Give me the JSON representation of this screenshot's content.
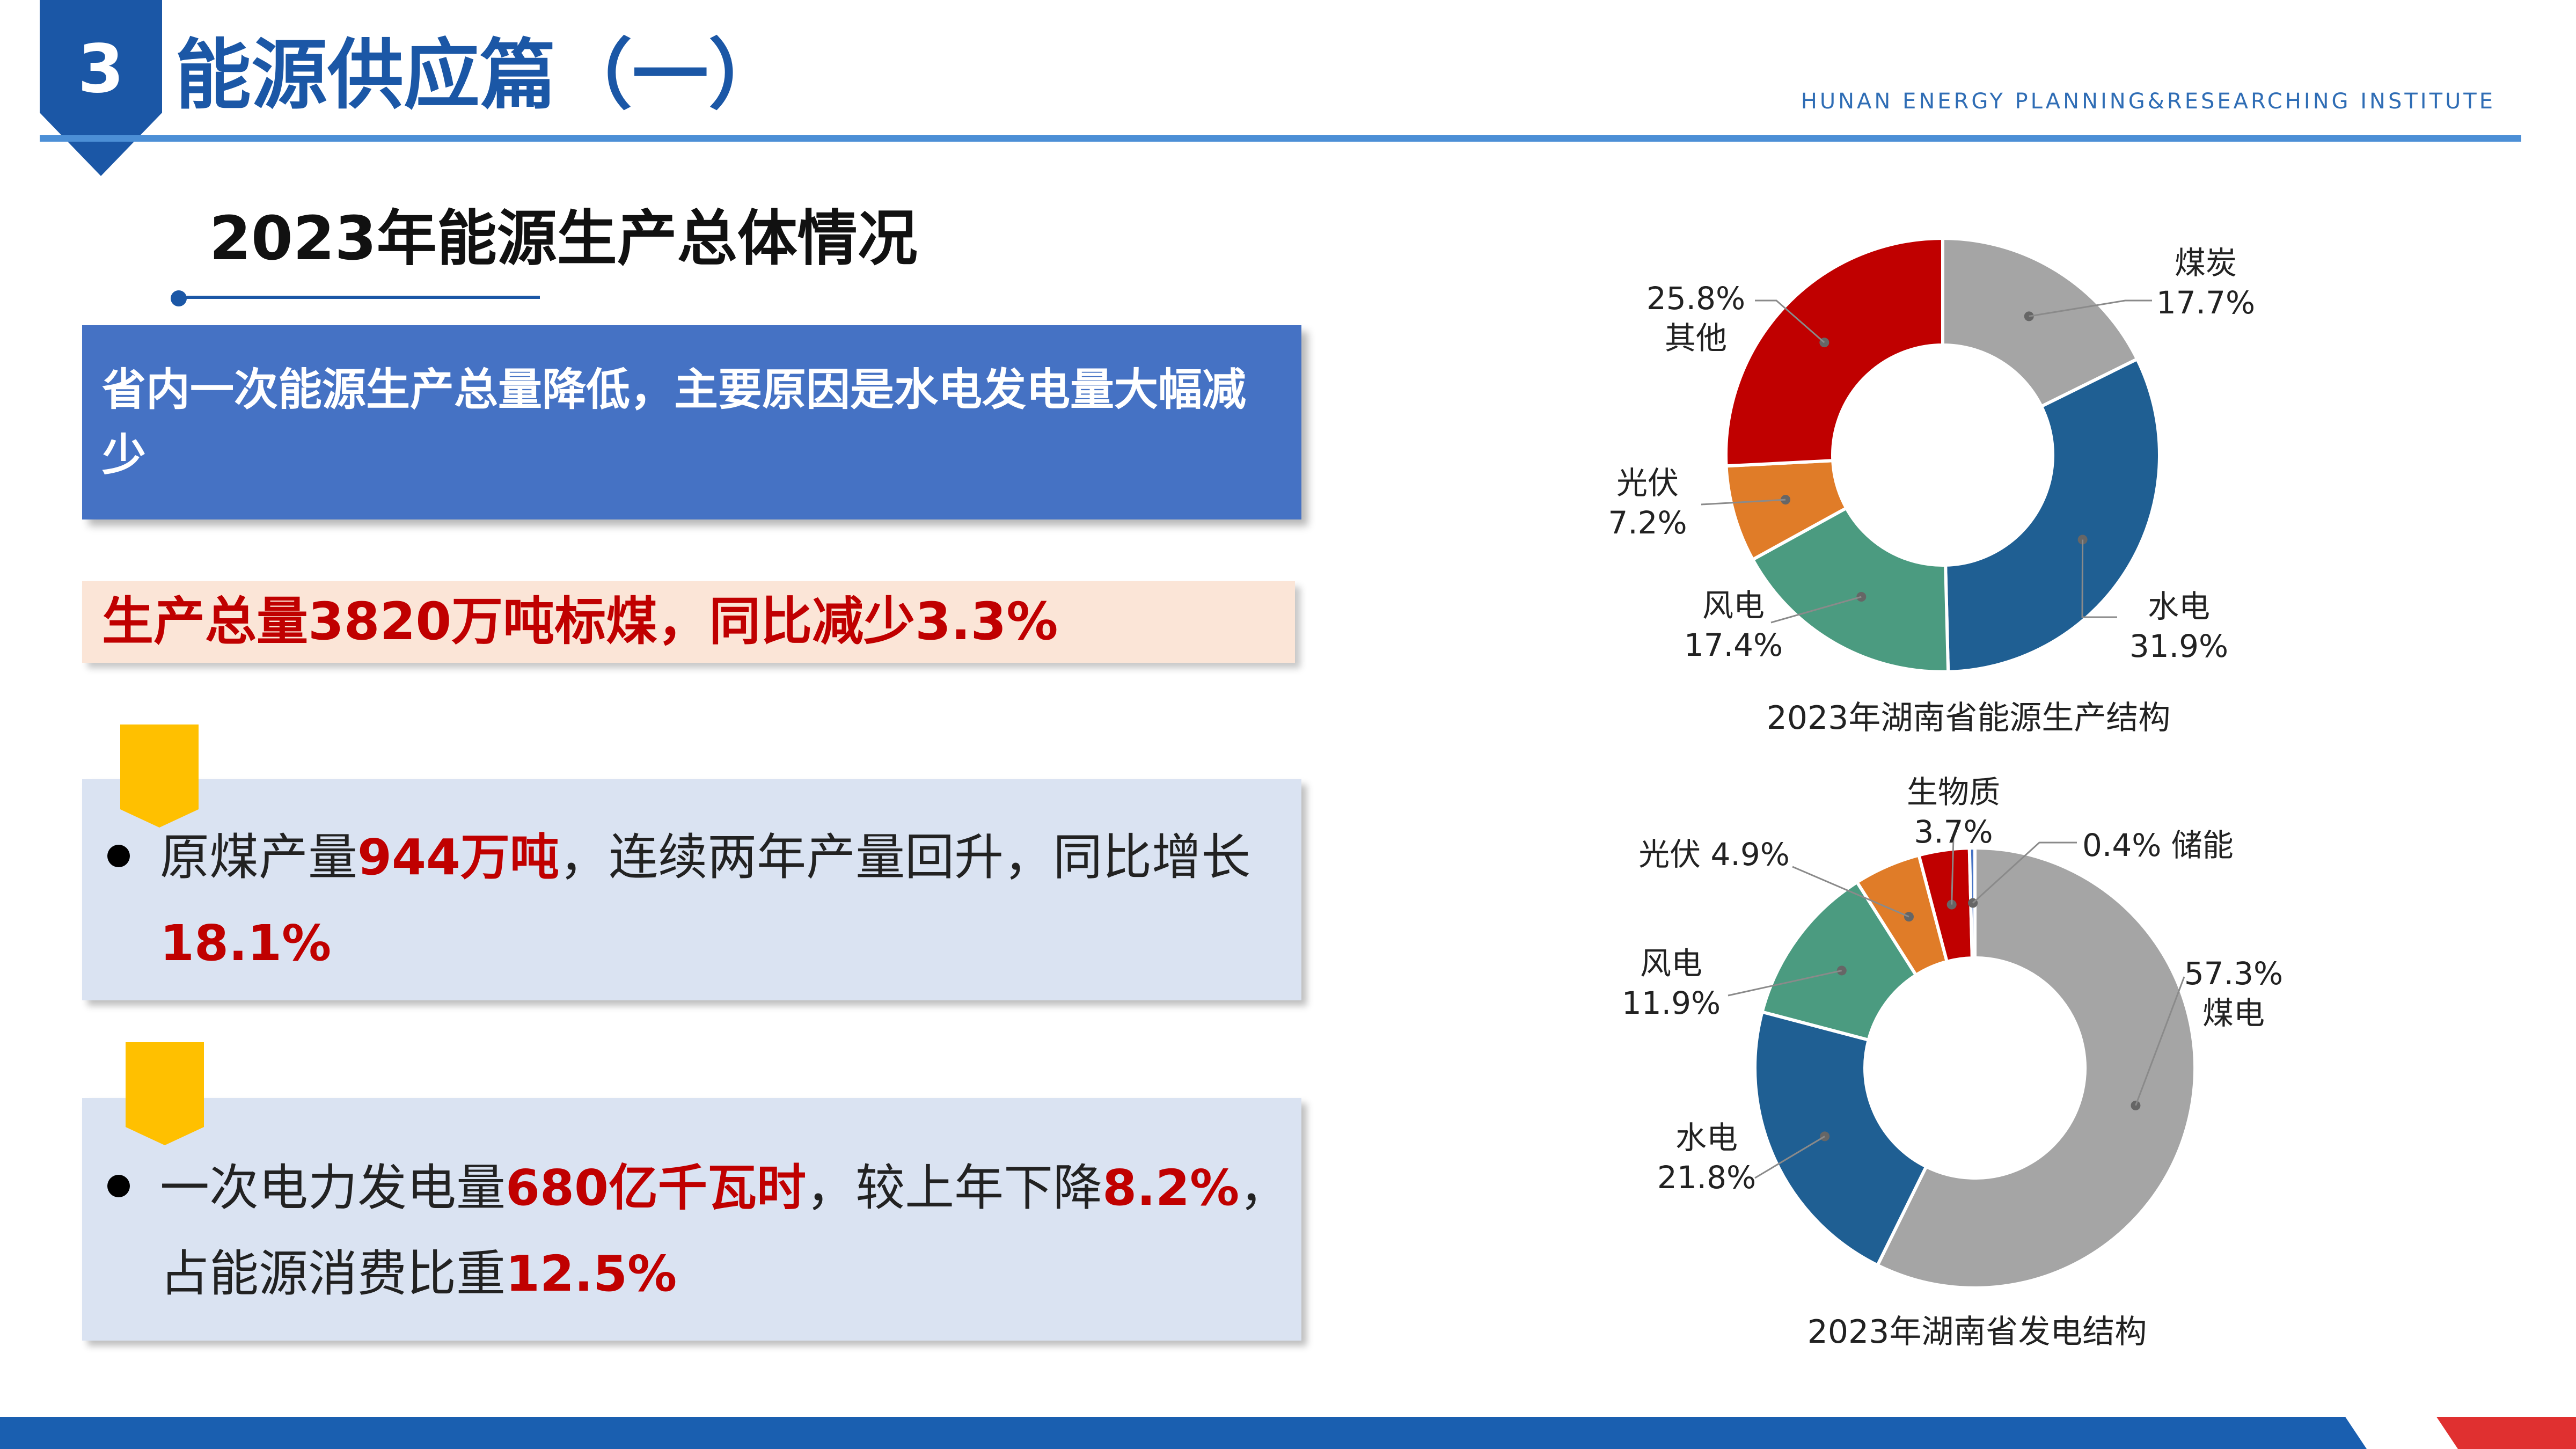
{
  "header": {
    "section_number": "3",
    "title": "能源供应篇（一）",
    "institute": "HUNAN ENERGY PLANNING&RESEARCHING INSTITUTE"
  },
  "subtitle": "2023年能源生产总体情况",
  "summary_box": "省内一次能源生产总量降低，主要原因是水电发电量大幅减少",
  "highlight": "生产总量3820万吨标煤，同比减少3.3%",
  "bullets": [
    {
      "t1": "原煤产量",
      "h1": "944万吨",
      "t2": "，连续两年产量回升，同比增长",
      "h2": "18.1%",
      "t3": ""
    },
    {
      "t1": "一次电力发电量",
      "h1": "680亿千瓦时",
      "t2": "，较上年下降",
      "h2": "8.2%",
      "t3": "，占能源消费比重",
      "h3": "12.5%"
    }
  ],
  "colors": {
    "brand_blue": "#1b57a6",
    "box_blue": "#4572c4",
    "highlight_red": "#c00000",
    "bookmark_yellow": "#ffc000"
  },
  "chart_data": [
    {
      "type": "pie",
      "donut": true,
      "title": "2023年湖南省能源生产结构",
      "slices": [
        {
          "name": "煤炭",
          "value": 17.7,
          "label": "17.7%",
          "color": "#a5a5a5"
        },
        {
          "name": "水电",
          "value": 31.9,
          "label": "31.9%",
          "color": "#1f5f93"
        },
        {
          "name": "风电",
          "value": 17.4,
          "label": "17.4%",
          "color": "#4b9b80"
        },
        {
          "name": "光伏",
          "value": 7.2,
          "label": "7.2%",
          "color": "#e07c28"
        },
        {
          "name": "其他",
          "value": 25.8,
          "label": "25.8%",
          "color": "#c00000"
        }
      ]
    },
    {
      "type": "pie",
      "donut": true,
      "title": "2023年湖南省发电结构",
      "slices": [
        {
          "name": "煤电",
          "value": 57.3,
          "label": "57.3%",
          "color": "#a5a5a5"
        },
        {
          "name": "水电",
          "value": 21.8,
          "label": "21.8%",
          "color": "#1f5f93"
        },
        {
          "name": "风电",
          "value": 11.9,
          "label": "11.9%",
          "color": "#4b9b80"
        },
        {
          "name": "光伏",
          "value": 4.9,
          "label": "4.9%",
          "color": "#e07c28"
        },
        {
          "name": "生物质",
          "value": 3.7,
          "label": "3.7%",
          "color": "#c00000"
        },
        {
          "name": "储能",
          "value": 0.4,
          "label": "0.4%",
          "color": "#4472c4"
        }
      ]
    }
  ]
}
